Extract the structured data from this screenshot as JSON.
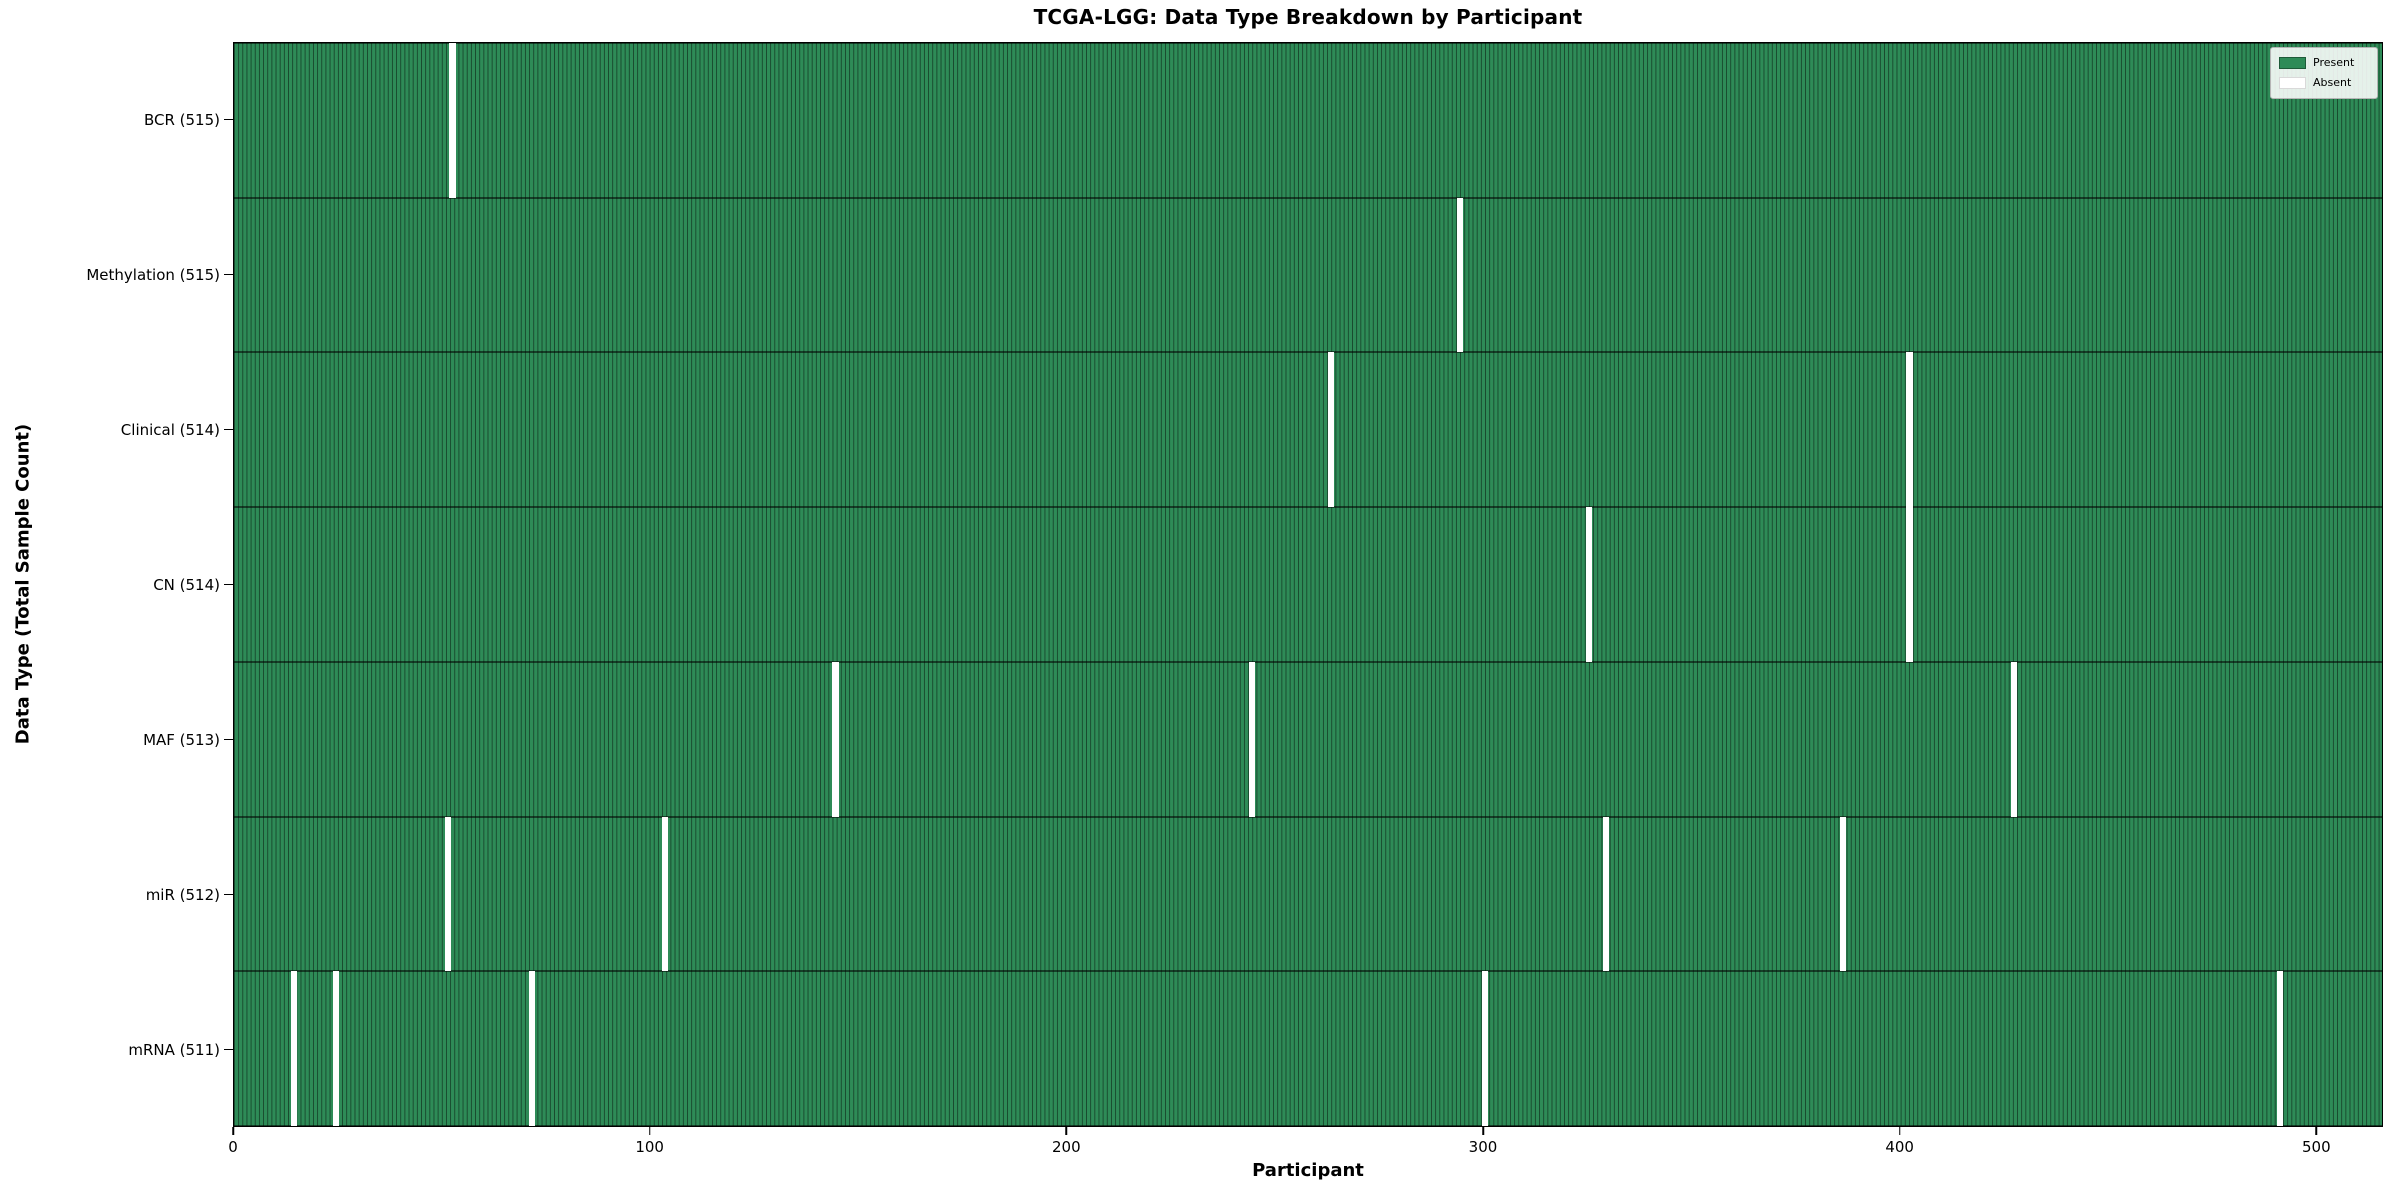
{
  "chart_data": {
    "type": "heatmap",
    "title": "TCGA-LGG: Data Type Breakdown by Participant",
    "xlabel": "Participant",
    "ylabel": "Data Type (Total Sample Count)",
    "x_ticks": [
      0,
      100,
      200,
      300,
      400,
      500
    ],
    "x_range": [
      0,
      516
    ],
    "n_participants": 516,
    "grid": false,
    "legend_position": "upper right",
    "colors": {
      "present": "#2e8b57",
      "absent": "#ffffff",
      "cell_edge": "rgba(0,0,0,0.48)"
    },
    "legend": [
      {
        "label": "Present",
        "color": "#2e8b57"
      },
      {
        "label": "Absent",
        "color": "#ffffff"
      }
    ],
    "rows": [
      {
        "label": "BCR (515)",
        "data_type": "BCR",
        "present_count": 515,
        "absent_participants": [
          52
        ]
      },
      {
        "label": "Methylation (515)",
        "data_type": "Methylation",
        "present_count": 515,
        "absent_participants": [
          294
        ]
      },
      {
        "label": "Clinical (514)",
        "data_type": "Clinical",
        "present_count": 514,
        "absent_participants": [
          263,
          402
        ]
      },
      {
        "label": "CN (514)",
        "data_type": "CN",
        "present_count": 514,
        "absent_participants": [
          325,
          402
        ]
      },
      {
        "label": "MAF (513)",
        "data_type": "MAF",
        "present_count": 513,
        "absent_participants": [
          144,
          244,
          427
        ]
      },
      {
        "label": "miR (512)",
        "data_type": "miR",
        "present_count": 512,
        "absent_participants": [
          51,
          103,
          329,
          386
        ]
      },
      {
        "label": "mRNA (511)",
        "data_type": "mRNA",
        "present_count": 511,
        "absent_participants": [
          14,
          24,
          71,
          300,
          491
        ]
      }
    ]
  }
}
